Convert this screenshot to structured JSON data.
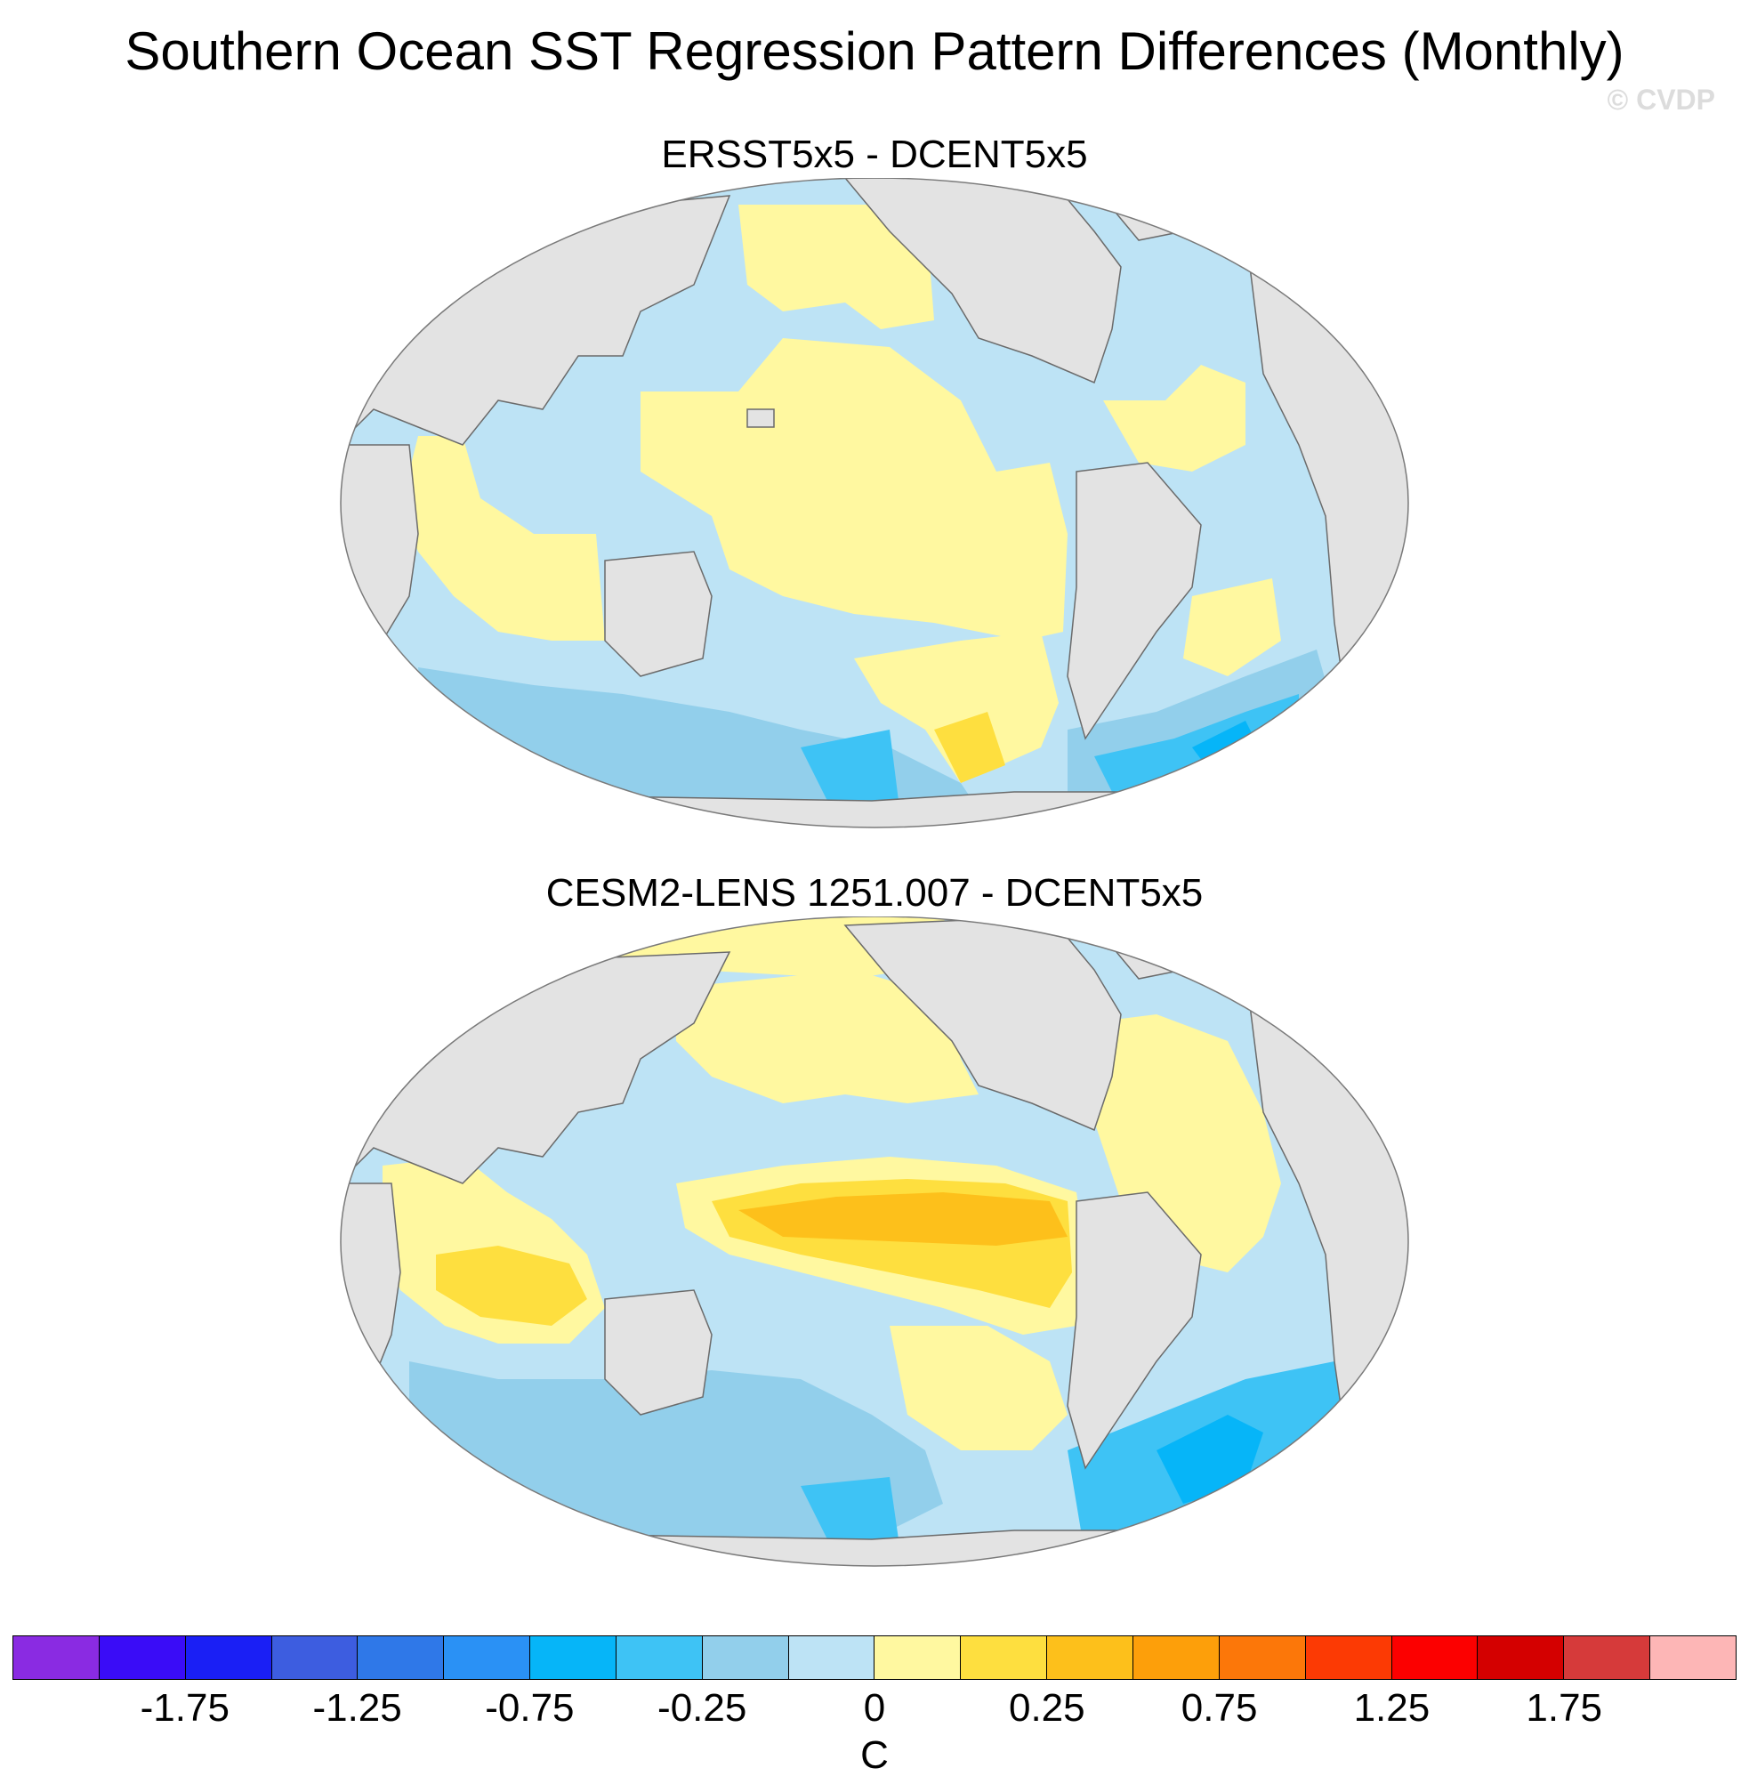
{
  "title": "Southern Ocean SST Regression Pattern Differences (Monthly)",
  "watermark": "© CVDP",
  "panels": [
    {
      "title": "ERSST5x5 - DCENT5x5"
    },
    {
      "title": "CESM2-LENS 1251.007 - DCENT5x5"
    }
  ],
  "colorbar": {
    "units": "C",
    "colors": [
      "#8a2be2",
      "#3a0cf7",
      "#1a1ff5",
      "#3d5de0",
      "#2f78e8",
      "#2a91f5",
      "#06b5f8",
      "#3ec3f5",
      "#92cfeb",
      "#bde3f5",
      "#fff8a0",
      "#fedf3f",
      "#fdc01b",
      "#fd9f0a",
      "#fc7709",
      "#fc3a04",
      "#fc0000",
      "#d40000",
      "#d63a3a",
      "#fdb6b6"
    ],
    "labels": [
      "-1.75",
      "-1.25",
      "-0.75",
      "-0.25",
      "0",
      "0.25",
      "0.75",
      "1.25",
      "1.75"
    ]
  },
  "colors": {
    "land": "#e3e3e3",
    "light_blue": "#bde3f5",
    "mid_blue": "#92cfeb",
    "blue": "#3ec3f5",
    "strong_blue": "#06b5f8",
    "yellow": "#fff8a0",
    "gold": "#fedf3f",
    "orange_gold": "#fdc01b"
  }
}
